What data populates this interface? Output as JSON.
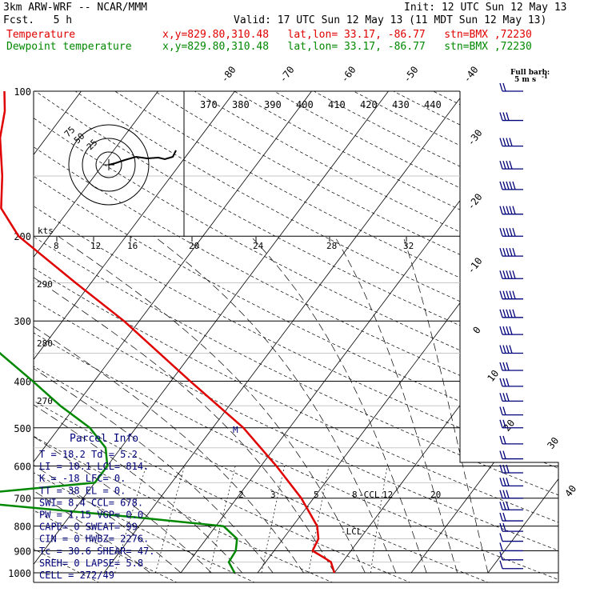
{
  "header": {
    "model": "3km ARW-WRF -- NCAR/MMM",
    "init": "Init: 12 UTC Sun 12 May 13",
    "fcst": "Fcst.   5 h",
    "valid": "Valid: 17 UTC Sun 12 May 13 (11 MDT Sun 12 May 13)",
    "temp_name": "Temperature",
    "temp_loc": "x,y=829.80,310.48   lat,lon= 33.17, -86.77   stn=BMX ,72230",
    "dew_name": "Dewpoint temperature",
    "dew_loc": "x,y=829.80,310.48   lat,lon= 33.17, -86.77   stn=BMX ,72230"
  },
  "colors": {
    "temperature": "#e00000",
    "dewpoint": "#008800",
    "barbs": "#00007a",
    "dashed": "#000000"
  },
  "chart_data": {
    "type": "line",
    "diagram": "skew-T log-p",
    "y_axis_label_values": [
      "100",
      "200",
      "300",
      "400",
      "500",
      "600",
      "700",
      "800",
      "900",
      "1000"
    ],
    "isotherm_labels": [
      "-80",
      "-70",
      "-60",
      "-50",
      "-40",
      "-30",
      "-20",
      "-10",
      "0",
      "10",
      "20",
      "30",
      "40"
    ],
    "theta_labels": [
      "370",
      "380",
      "390",
      "400",
      "410",
      "420",
      "430",
      "440"
    ],
    "theta_left_labels": [
      "290",
      "280",
      "270"
    ],
    "wind_speed_labels": [
      "8",
      "12",
      "16",
      "20",
      "24",
      "28",
      "32"
    ],
    "wind_speed_unit": "kts",
    "mixing_ratio_labels": [
      "2",
      "3",
      "5",
      "8",
      "12",
      "20"
    ],
    "hodograph_ring_labels": [
      "75",
      "50",
      "25"
    ],
    "barb_key": {
      "title": "Full barb:",
      "value": "5 m s",
      "exponent": "-1"
    },
    "markers": {
      "ccl": "CCL",
      "lcl": "LCL",
      "m": "M"
    },
    "series": [
      {
        "name": "Temperature",
        "points": [
          [
            1000,
            20.0
          ],
          [
            950,
            18.5
          ],
          [
            925,
            16.8
          ],
          [
            900,
            15.0
          ],
          [
            850,
            14.6
          ],
          [
            800,
            13.2
          ],
          [
            700,
            8.4
          ],
          [
            600,
            2.0
          ],
          [
            500,
            -6.0
          ],
          [
            400,
            -17.5
          ],
          [
            300,
            -32.0
          ],
          [
            250,
            -42.0
          ],
          [
            200,
            -54.0
          ],
          [
            175,
            -59.0
          ],
          [
            150,
            -62.0
          ],
          [
            125,
            -66.0
          ],
          [
            110,
            -68.0
          ],
          [
            100,
            -70.0
          ]
        ]
      },
      {
        "name": "Dewpoint temperature",
        "points": [
          [
            1000,
            7.0
          ],
          [
            950,
            5.2
          ],
          [
            900,
            5.0
          ],
          [
            850,
            4.0
          ],
          [
            800,
            1.0
          ],
          [
            770,
            -10.0
          ],
          [
            700,
            -40.0
          ],
          [
            650,
            -20.0
          ],
          [
            600,
            -20.0
          ],
          [
            550,
            -22.0
          ],
          [
            500,
            -26.0
          ],
          [
            450,
            -32.0
          ],
          [
            400,
            -38.0
          ],
          [
            350,
            -45.0
          ],
          [
            300,
            -52.0
          ],
          [
            270,
            -55.0
          ],
          [
            250,
            -62.0
          ],
          [
            200,
            -73.0
          ],
          [
            170,
            -75.0
          ],
          [
            150,
            -79.0
          ],
          [
            130,
            -83.0
          ],
          [
            110,
            -85.0
          ],
          [
            100,
            -87.0
          ]
        ]
      }
    ],
    "wind_barbs": [
      {
        "p": 100,
        "n": 2
      },
      {
        "p": 115,
        "n": 3
      },
      {
        "p": 130,
        "n": 4
      },
      {
        "p": 145,
        "n": 4
      },
      {
        "p": 160,
        "n": 5
      },
      {
        "p": 180,
        "n": 5
      },
      {
        "p": 200,
        "n": 5
      },
      {
        "p": 220,
        "n": 5
      },
      {
        "p": 245,
        "n": 5
      },
      {
        "p": 270,
        "n": 5
      },
      {
        "p": 295,
        "n": 5
      },
      {
        "p": 320,
        "n": 4
      },
      {
        "p": 350,
        "n": 4
      },
      {
        "p": 380,
        "n": 3
      },
      {
        "p": 410,
        "n": 3
      },
      {
        "p": 440,
        "n": 3
      },
      {
        "p": 470,
        "n": 2
      },
      {
        "p": 500,
        "n": 2
      },
      {
        "p": 540,
        "n": 2
      },
      {
        "p": 580,
        "n": 2
      },
      {
        "p": 620,
        "n": 3
      },
      {
        "p": 660,
        "n": 3
      },
      {
        "p": 700,
        "n": 3
      },
      {
        "p": 740,
        "n": 3
      },
      {
        "p": 780,
        "n": 2
      },
      {
        "p": 820,
        "n": 2
      },
      {
        "p": 860,
        "n": 1
      },
      {
        "p": 900,
        "n": 1
      },
      {
        "p": 940,
        "n": 1
      },
      {
        "p": 980,
        "n": 1
      }
    ],
    "hodograph_trace": [
      [
        0,
        0
      ],
      [
        8,
        -2
      ],
      [
        20,
        -6
      ],
      [
        34,
        -10
      ],
      [
        48,
        -8
      ],
      [
        62,
        -9
      ],
      [
        70,
        -7
      ],
      [
        80,
        -10
      ],
      [
        84,
        -18
      ]
    ]
  },
  "parcel": {
    "title": "Parcel Info",
    "rows": [
      "T  =   18.2 Td =  5.2",
      "LI =   10.1 LCL=  814.",
      "K  =    -18 LFC=    0.",
      "TT =     38 EL =    0.",
      "SWI=    8.4 CCL=  678.",
      "PW =   1.15 VGP=   0.0",
      "CAPE=     0 SWEAT=  99",
      "CIN =     0 HWBZ= 2276.",
      "Tc =   30.6 SHEAR=  47.",
      "SREH=     0 LAPSE=  5.8",
      "CELL = 272/49"
    ]
  }
}
